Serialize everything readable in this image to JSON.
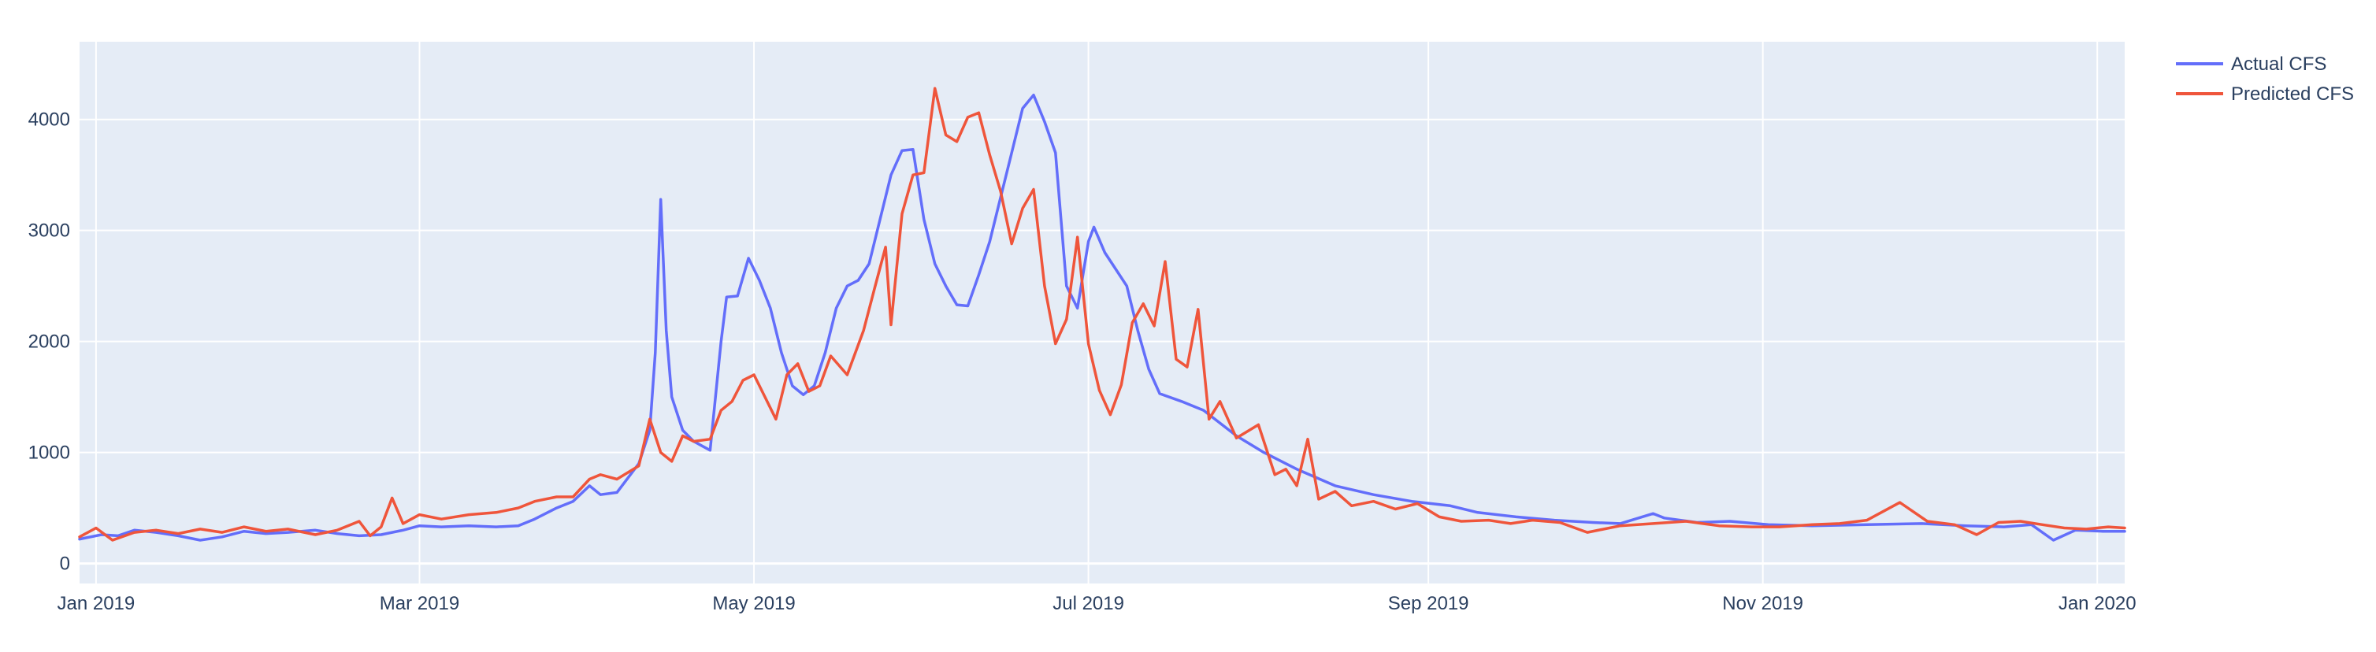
{
  "chart_data": {
    "type": "line",
    "title": "",
    "xlabel": "",
    "ylabel": "",
    "x_range": [
      "2018-12-29",
      "2020-01-06"
    ],
    "ylim": [
      -180,
      4700
    ],
    "grid": true,
    "legend_position": "top-right",
    "colors": {
      "plot_bg": "#e5ecf6",
      "grid": "#ffffff",
      "text": "#2a3f5f",
      "actual": "#636efa",
      "predicted": "#ef553b"
    },
    "y_ticks": [
      0,
      1000,
      2000,
      3000,
      4000
    ],
    "y_tick_labels": [
      "0",
      "1000",
      "2000",
      "3000",
      "4000"
    ],
    "x_ticks": [
      "2019-01-01",
      "2019-03-01",
      "2019-05-01",
      "2019-07-01",
      "2019-09-01",
      "2019-11-01",
      "2020-01-01"
    ],
    "x_tick_labels": [
      "Jan 2019",
      "Mar 2019",
      "May 2019",
      "Jul 2019",
      "Sep 2019",
      "Nov 2019",
      "Jan 2020"
    ],
    "series": [
      {
        "name": "Actual CFS",
        "points": [
          [
            "2018-12-29",
            220
          ],
          [
            "2019-01-02",
            260
          ],
          [
            "2019-01-05",
            250
          ],
          [
            "2019-01-08",
            300
          ],
          [
            "2019-01-12",
            280
          ],
          [
            "2019-01-16",
            250
          ],
          [
            "2019-01-20",
            210
          ],
          [
            "2019-01-24",
            240
          ],
          [
            "2019-01-28",
            290
          ],
          [
            "2019-02-01",
            270
          ],
          [
            "2019-02-05",
            280
          ],
          [
            "2019-02-10",
            300
          ],
          [
            "2019-02-14",
            270
          ],
          [
            "2019-02-18",
            250
          ],
          [
            "2019-02-22",
            260
          ],
          [
            "2019-02-26",
            300
          ],
          [
            "2019-03-01",
            340
          ],
          [
            "2019-03-05",
            330
          ],
          [
            "2019-03-10",
            340
          ],
          [
            "2019-03-15",
            330
          ],
          [
            "2019-03-19",
            340
          ],
          [
            "2019-03-22",
            400
          ],
          [
            "2019-03-26",
            500
          ],
          [
            "2019-03-29",
            560
          ],
          [
            "2019-04-01",
            700
          ],
          [
            "2019-04-03",
            620
          ],
          [
            "2019-04-06",
            640
          ],
          [
            "2019-04-10",
            900
          ],
          [
            "2019-04-12",
            1200
          ],
          [
            "2019-04-13",
            1900
          ],
          [
            "2019-04-14",
            3280
          ],
          [
            "2019-04-15",
            2100
          ],
          [
            "2019-04-16",
            1500
          ],
          [
            "2019-04-18",
            1200
          ],
          [
            "2019-04-20",
            1100
          ],
          [
            "2019-04-23",
            1020
          ],
          [
            "2019-04-25",
            2000
          ],
          [
            "2019-04-26",
            2400
          ],
          [
            "2019-04-28",
            2410
          ],
          [
            "2019-04-30",
            2750
          ],
          [
            "2019-05-02",
            2550
          ],
          [
            "2019-05-04",
            2300
          ],
          [
            "2019-05-06",
            1900
          ],
          [
            "2019-05-08",
            1600
          ],
          [
            "2019-05-10",
            1520
          ],
          [
            "2019-05-12",
            1600
          ],
          [
            "2019-05-14",
            1900
          ],
          [
            "2019-05-16",
            2300
          ],
          [
            "2019-05-18",
            2500
          ],
          [
            "2019-05-20",
            2550
          ],
          [
            "2019-05-22",
            2700
          ],
          [
            "2019-05-24",
            3100
          ],
          [
            "2019-05-26",
            3500
          ],
          [
            "2019-05-28",
            3720
          ],
          [
            "2019-05-30",
            3730
          ],
          [
            "2019-06-01",
            3100
          ],
          [
            "2019-06-03",
            2700
          ],
          [
            "2019-06-05",
            2500
          ],
          [
            "2019-06-07",
            2330
          ],
          [
            "2019-06-09",
            2320
          ],
          [
            "2019-06-11",
            2600
          ],
          [
            "2019-06-13",
            2900
          ],
          [
            "2019-06-15",
            3300
          ],
          [
            "2019-06-17",
            3700
          ],
          [
            "2019-06-19",
            4100
          ],
          [
            "2019-06-21",
            4220
          ],
          [
            "2019-06-23",
            3980
          ],
          [
            "2019-06-25",
            3700
          ],
          [
            "2019-06-27",
            2500
          ],
          [
            "2019-06-29",
            2300
          ],
          [
            "2019-07-01",
            2900
          ],
          [
            "2019-07-02",
            3030
          ],
          [
            "2019-07-04",
            2800
          ],
          [
            "2019-07-06",
            2650
          ],
          [
            "2019-07-08",
            2500
          ],
          [
            "2019-07-10",
            2100
          ],
          [
            "2019-07-12",
            1750
          ],
          [
            "2019-07-14",
            1530
          ],
          [
            "2019-07-18",
            1460
          ],
          [
            "2019-07-22",
            1380
          ],
          [
            "2019-07-28",
            1150
          ],
          [
            "2019-08-02",
            1000
          ],
          [
            "2019-08-08",
            850
          ],
          [
            "2019-08-15",
            700
          ],
          [
            "2019-08-22",
            620
          ],
          [
            "2019-08-29",
            560
          ],
          [
            "2019-09-05",
            520
          ],
          [
            "2019-09-10",
            460
          ],
          [
            "2019-09-17",
            420
          ],
          [
            "2019-09-24",
            390
          ],
          [
            "2019-10-01",
            370
          ],
          [
            "2019-10-06",
            360
          ],
          [
            "2019-10-10",
            420
          ],
          [
            "2019-10-12",
            450
          ],
          [
            "2019-10-14",
            410
          ],
          [
            "2019-10-20",
            370
          ],
          [
            "2019-10-26",
            380
          ],
          [
            "2019-11-02",
            350
          ],
          [
            "2019-11-10",
            340
          ],
          [
            "2019-11-20",
            350
          ],
          [
            "2019-11-30",
            360
          ],
          [
            "2019-12-08",
            340
          ],
          [
            "2019-12-15",
            330
          ],
          [
            "2019-12-20",
            350
          ],
          [
            "2019-12-24",
            210
          ],
          [
            "2019-12-28",
            300
          ],
          [
            "2020-01-02",
            290
          ],
          [
            "2020-01-06",
            290
          ]
        ]
      },
      {
        "name": "Predicted CFS",
        "points": [
          [
            "2018-12-29",
            240
          ],
          [
            "2019-01-01",
            320
          ],
          [
            "2019-01-04",
            210
          ],
          [
            "2019-01-08",
            280
          ],
          [
            "2019-01-12",
            300
          ],
          [
            "2019-01-16",
            270
          ],
          [
            "2019-01-20",
            310
          ],
          [
            "2019-01-24",
            280
          ],
          [
            "2019-01-28",
            330
          ],
          [
            "2019-02-01",
            290
          ],
          [
            "2019-02-05",
            310
          ],
          [
            "2019-02-10",
            260
          ],
          [
            "2019-02-14",
            300
          ],
          [
            "2019-02-18",
            380
          ],
          [
            "2019-02-20",
            250
          ],
          [
            "2019-02-22",
            330
          ],
          [
            "2019-02-24",
            590
          ],
          [
            "2019-02-26",
            360
          ],
          [
            "2019-03-01",
            440
          ],
          [
            "2019-03-05",
            400
          ],
          [
            "2019-03-10",
            440
          ],
          [
            "2019-03-15",
            460
          ],
          [
            "2019-03-19",
            500
          ],
          [
            "2019-03-22",
            560
          ],
          [
            "2019-03-26",
            600
          ],
          [
            "2019-03-29",
            600
          ],
          [
            "2019-04-01",
            760
          ],
          [
            "2019-04-03",
            800
          ],
          [
            "2019-04-06",
            760
          ],
          [
            "2019-04-10",
            880
          ],
          [
            "2019-04-12",
            1300
          ],
          [
            "2019-04-14",
            1000
          ],
          [
            "2019-04-16",
            920
          ],
          [
            "2019-04-18",
            1150
          ],
          [
            "2019-04-20",
            1100
          ],
          [
            "2019-04-23",
            1120
          ],
          [
            "2019-04-25",
            1380
          ],
          [
            "2019-04-27",
            1460
          ],
          [
            "2019-04-29",
            1650
          ],
          [
            "2019-05-01",
            1700
          ],
          [
            "2019-05-03",
            1500
          ],
          [
            "2019-05-05",
            1300
          ],
          [
            "2019-05-07",
            1700
          ],
          [
            "2019-05-09",
            1800
          ],
          [
            "2019-05-11",
            1550
          ],
          [
            "2019-05-13",
            1600
          ],
          [
            "2019-05-15",
            1870
          ],
          [
            "2019-05-18",
            1700
          ],
          [
            "2019-05-21",
            2100
          ],
          [
            "2019-05-23",
            2480
          ],
          [
            "2019-05-25",
            2850
          ],
          [
            "2019-05-26",
            2150
          ],
          [
            "2019-05-28",
            3150
          ],
          [
            "2019-05-30",
            3500
          ],
          [
            "2019-06-01",
            3520
          ],
          [
            "2019-06-03",
            4280
          ],
          [
            "2019-06-05",
            3860
          ],
          [
            "2019-06-07",
            3800
          ],
          [
            "2019-06-09",
            4020
          ],
          [
            "2019-06-11",
            4060
          ],
          [
            "2019-06-13",
            3680
          ],
          [
            "2019-06-15",
            3350
          ],
          [
            "2019-06-17",
            2880
          ],
          [
            "2019-06-19",
            3200
          ],
          [
            "2019-06-21",
            3370
          ],
          [
            "2019-06-23",
            2500
          ],
          [
            "2019-06-25",
            1980
          ],
          [
            "2019-06-27",
            2200
          ],
          [
            "2019-06-29",
            2940
          ],
          [
            "2019-07-01",
            1980
          ],
          [
            "2019-07-03",
            1560
          ],
          [
            "2019-07-05",
            1340
          ],
          [
            "2019-07-07",
            1610
          ],
          [
            "2019-07-09",
            2170
          ],
          [
            "2019-07-11",
            2340
          ],
          [
            "2019-07-13",
            2140
          ],
          [
            "2019-07-15",
            2720
          ],
          [
            "2019-07-17",
            1840
          ],
          [
            "2019-07-19",
            1770
          ],
          [
            "2019-07-21",
            2290
          ],
          [
            "2019-07-23",
            1300
          ],
          [
            "2019-07-25",
            1460
          ],
          [
            "2019-07-28",
            1130
          ],
          [
            "2019-08-01",
            1250
          ],
          [
            "2019-08-04",
            800
          ],
          [
            "2019-08-06",
            850
          ],
          [
            "2019-08-08",
            700
          ],
          [
            "2019-08-10",
            1120
          ],
          [
            "2019-08-12",
            580
          ],
          [
            "2019-08-15",
            650
          ],
          [
            "2019-08-18",
            520
          ],
          [
            "2019-08-22",
            560
          ],
          [
            "2019-08-26",
            490
          ],
          [
            "2019-08-30",
            540
          ],
          [
            "2019-09-03",
            420
          ],
          [
            "2019-09-07",
            380
          ],
          [
            "2019-09-12",
            390
          ],
          [
            "2019-09-16",
            360
          ],
          [
            "2019-09-20",
            390
          ],
          [
            "2019-09-25",
            370
          ],
          [
            "2019-09-30",
            280
          ],
          [
            "2019-10-06",
            340
          ],
          [
            "2019-10-12",
            360
          ],
          [
            "2019-10-18",
            380
          ],
          [
            "2019-10-24",
            340
          ],
          [
            "2019-10-30",
            330
          ],
          [
            "2019-11-04",
            330
          ],
          [
            "2019-11-10",
            350
          ],
          [
            "2019-11-15",
            360
          ],
          [
            "2019-11-20",
            390
          ],
          [
            "2019-11-26",
            550
          ],
          [
            "2019-12-01",
            380
          ],
          [
            "2019-12-06",
            350
          ],
          [
            "2019-12-10",
            260
          ],
          [
            "2019-12-14",
            370
          ],
          [
            "2019-12-18",
            380
          ],
          [
            "2019-12-22",
            350
          ],
          [
            "2019-12-26",
            320
          ],
          [
            "2019-12-30",
            310
          ],
          [
            "2020-01-03",
            330
          ],
          [
            "2020-01-06",
            320
          ]
        ]
      }
    ]
  }
}
